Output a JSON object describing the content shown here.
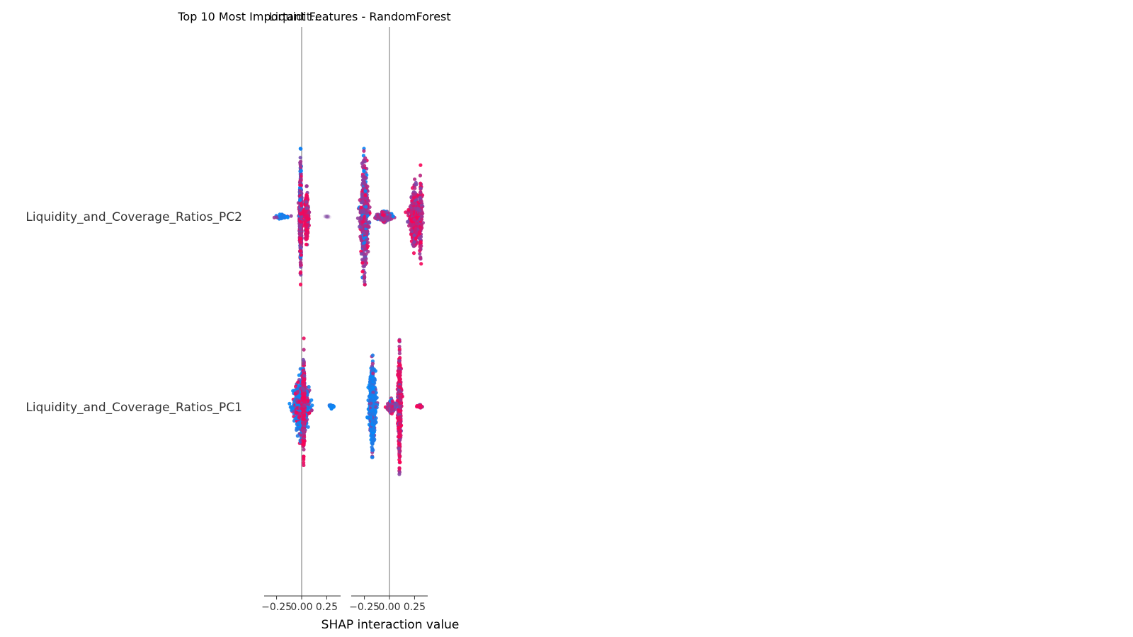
{
  "chart_data": {
    "type": "scatter",
    "kind": "shap-interaction-beeswarm",
    "title_overlap": [
      "Top 10 Most Important Features - RandomForest",
      "Liquidit..."
    ],
    "xlabel": "SHAP interaction value",
    "features": [
      "Liquidity_and_Coverage_Ratios_PC2",
      "Liquidity_and_Coverage_Ratios_PC1"
    ],
    "colors": {
      "low": "#008bfb",
      "high": "#ff0052",
      "axis_line": "#999999",
      "tick": "#333333"
    },
    "panels": [
      {
        "xlim": [
          -0.36,
          0.36
        ],
        "ticks": [
          {
            "value": -0.25,
            "label": "−0.25"
          },
          {
            "value": 0.0,
            "label": "0.00"
          },
          {
            "value": 0.25,
            "label": "0.25"
          }
        ],
        "rows": [
          {
            "feature": "Liquidity_and_Coverage_Ratios_PC2",
            "clusters": [
              {
                "x": -0.01,
                "spread_x": 0.02,
                "spread_y": 1.0,
                "n": 520,
                "color_mix": "mixed"
              },
              {
                "x": 0.05,
                "spread_x": 0.04,
                "spread_y": 0.45,
                "n": 220,
                "color_mix": "high"
              },
              {
                "x": -0.2,
                "spread_x": 0.12,
                "spread_y": 0.04,
                "n": 40,
                "color_mix": "low"
              },
              {
                "x": 0.25,
                "spread_x": 0.05,
                "spread_y": 0.02,
                "n": 20,
                "color_mix": "faint"
              }
            ]
          },
          {
            "feature": "Liquidity_and_Coverage_Ratios_PC1",
            "clusters": [
              {
                "x": 0.0,
                "spread_x": 0.13,
                "spread_y": 0.55,
                "n": 700,
                "color_mix": "mixed_low"
              },
              {
                "x": 0.02,
                "spread_x": 0.02,
                "spread_y": 1.0,
                "n": 260,
                "color_mix": "high"
              },
              {
                "x": 0.3,
                "spread_x": 0.04,
                "spread_y": 0.04,
                "n": 30,
                "color_mix": "low"
              }
            ]
          }
        ]
      },
      {
        "xlim": [
          -0.36,
          0.36
        ],
        "ticks": [
          {
            "value": -0.25,
            "label": "−0.25"
          },
          {
            "value": 0.0,
            "label": "0.00"
          },
          {
            "value": 0.25,
            "label": "0.25"
          }
        ],
        "rows": [
          {
            "feature": "Liquidity_and_Coverage_Ratios_PC2",
            "clusters": [
              {
                "x": -0.25,
                "spread_x": 0.07,
                "spread_y": 1.0,
                "n": 520,
                "color_mix": "mixed"
              },
              {
                "x": -0.05,
                "spread_x": 0.14,
                "spread_y": 0.1,
                "n": 160,
                "color_mix": "mixed"
              },
              {
                "x": 0.25,
                "spread_x": 0.09,
                "spread_y": 0.55,
                "n": 420,
                "color_mix": "mixed_high"
              },
              {
                "x": 0.31,
                "spread_x": 0.03,
                "spread_y": 0.8,
                "n": 160,
                "color_mix": "mixed_high"
              }
            ]
          },
          {
            "feature": "Liquidity_and_Coverage_Ratios_PC1",
            "clusters": [
              {
                "x": -0.17,
                "spread_x": 0.06,
                "spread_y": 0.75,
                "n": 520,
                "color_mix": "low"
              },
              {
                "x": 0.1,
                "spread_x": 0.03,
                "spread_y": 1.0,
                "n": 420,
                "color_mix": "high"
              },
              {
                "x": 0.02,
                "spread_x": 0.08,
                "spread_y": 0.12,
                "n": 140,
                "color_mix": "mixed"
              },
              {
                "x": 0.3,
                "spread_x": 0.04,
                "spread_y": 0.03,
                "n": 25,
                "color_mix": "high"
              }
            ]
          }
        ]
      }
    ]
  }
}
